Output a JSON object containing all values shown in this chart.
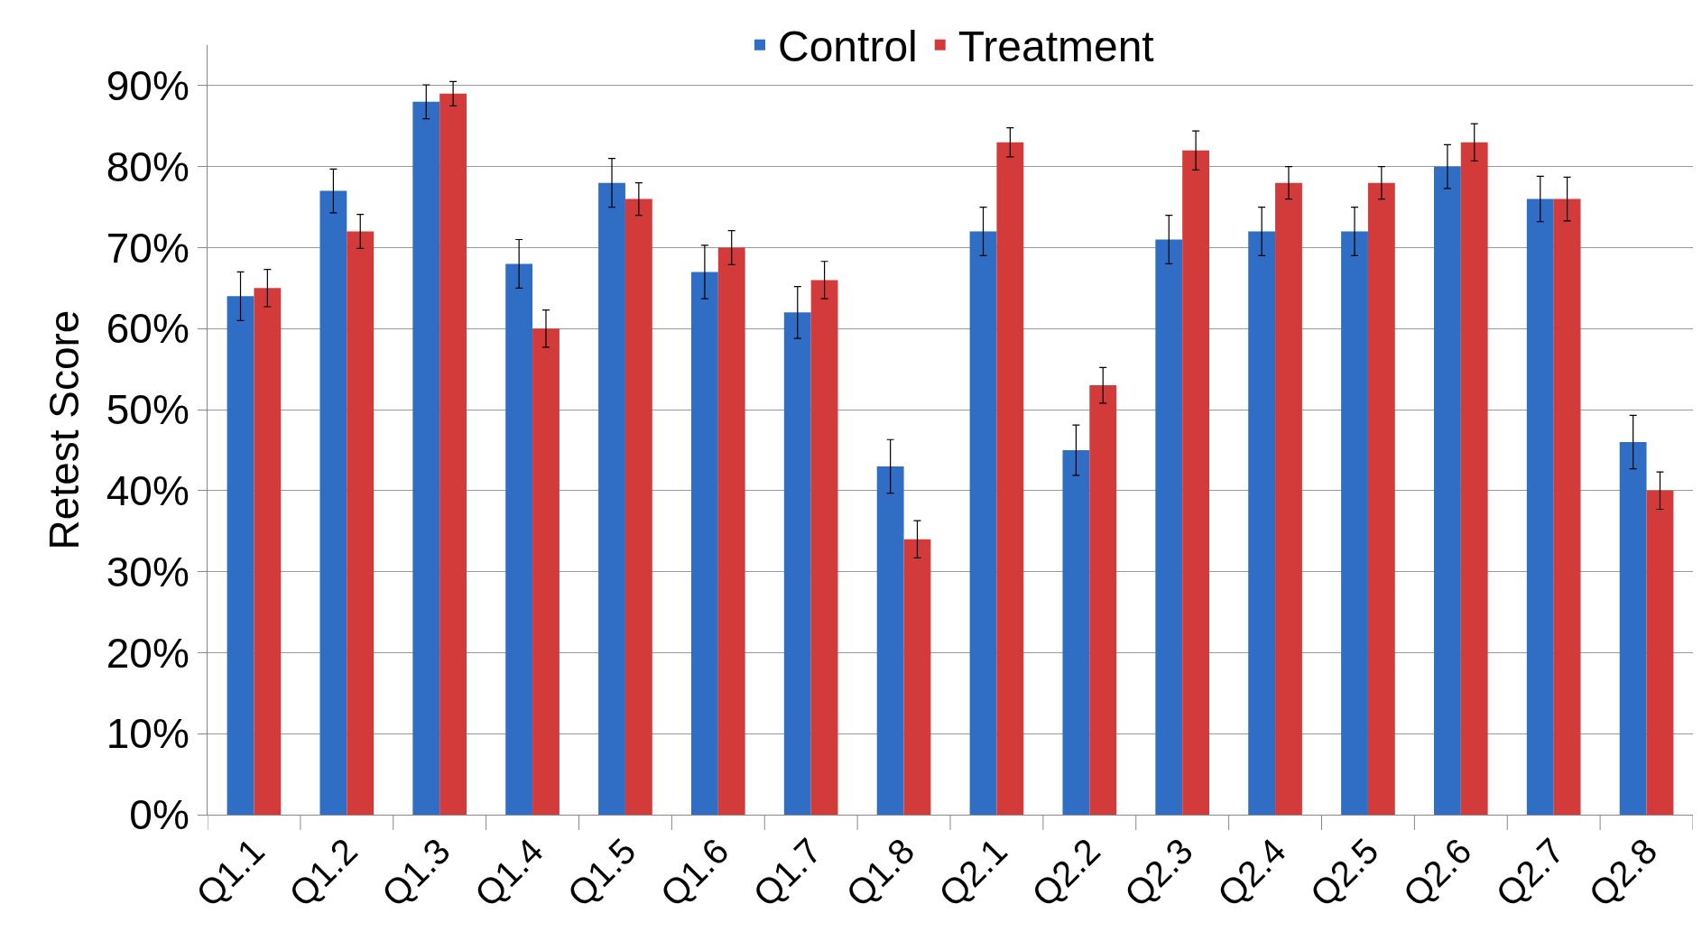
{
  "chart_data": {
    "type": "bar",
    "ylabel": "Retest Score",
    "categories": [
      "Q1.1",
      "Q1.2",
      "Q1.3",
      "Q1.4",
      "Q1.5",
      "Q1.6",
      "Q1.7",
      "Q1.8",
      "Q2.1",
      "Q2.2",
      "Q2.3",
      "Q2.4",
      "Q2.5",
      "Q2.6",
      "Q2.7",
      "Q2.8"
    ],
    "series": [
      {
        "name": "Control",
        "color": "#2f6ec4",
        "values": [
          64,
          77,
          88,
          68,
          78,
          67,
          62,
          43,
          72,
          45,
          71,
          72,
          72,
          80,
          76,
          46
        ],
        "errors": [
          3,
          2.7,
          2.1,
          3,
          3,
          3.3,
          3.2,
          3.3,
          3,
          3.1,
          3,
          3,
          3,
          2.7,
          2.8,
          3.3
        ]
      },
      {
        "name": "Treatment",
        "color": "#d33b3b",
        "values": [
          65,
          72,
          89,
          60,
          76,
          70,
          66,
          34,
          83,
          53,
          82,
          78,
          78,
          83,
          76,
          40
        ],
        "errors": [
          2.3,
          2.1,
          1.5,
          2.3,
          2,
          2.1,
          2.3,
          2.3,
          1.8,
          2.2,
          2.4,
          2,
          2,
          2.3,
          2.7,
          2.3
        ]
      }
    ],
    "ylim": [
      0,
      95
    ],
    "yticks": [
      {
        "value": 0,
        "label": "0%"
      },
      {
        "value": 10,
        "label": "10%"
      },
      {
        "value": 20,
        "label": "20%"
      },
      {
        "value": 30,
        "label": "30%"
      },
      {
        "value": 40,
        "label": "40%"
      },
      {
        "value": 50,
        "label": "50%"
      },
      {
        "value": 60,
        "label": "60%"
      },
      {
        "value": 70,
        "label": "70%"
      },
      {
        "value": 80,
        "label": "80%"
      },
      {
        "value": 90,
        "label": "90%"
      }
    ],
    "grid": "y",
    "legend": "top"
  }
}
